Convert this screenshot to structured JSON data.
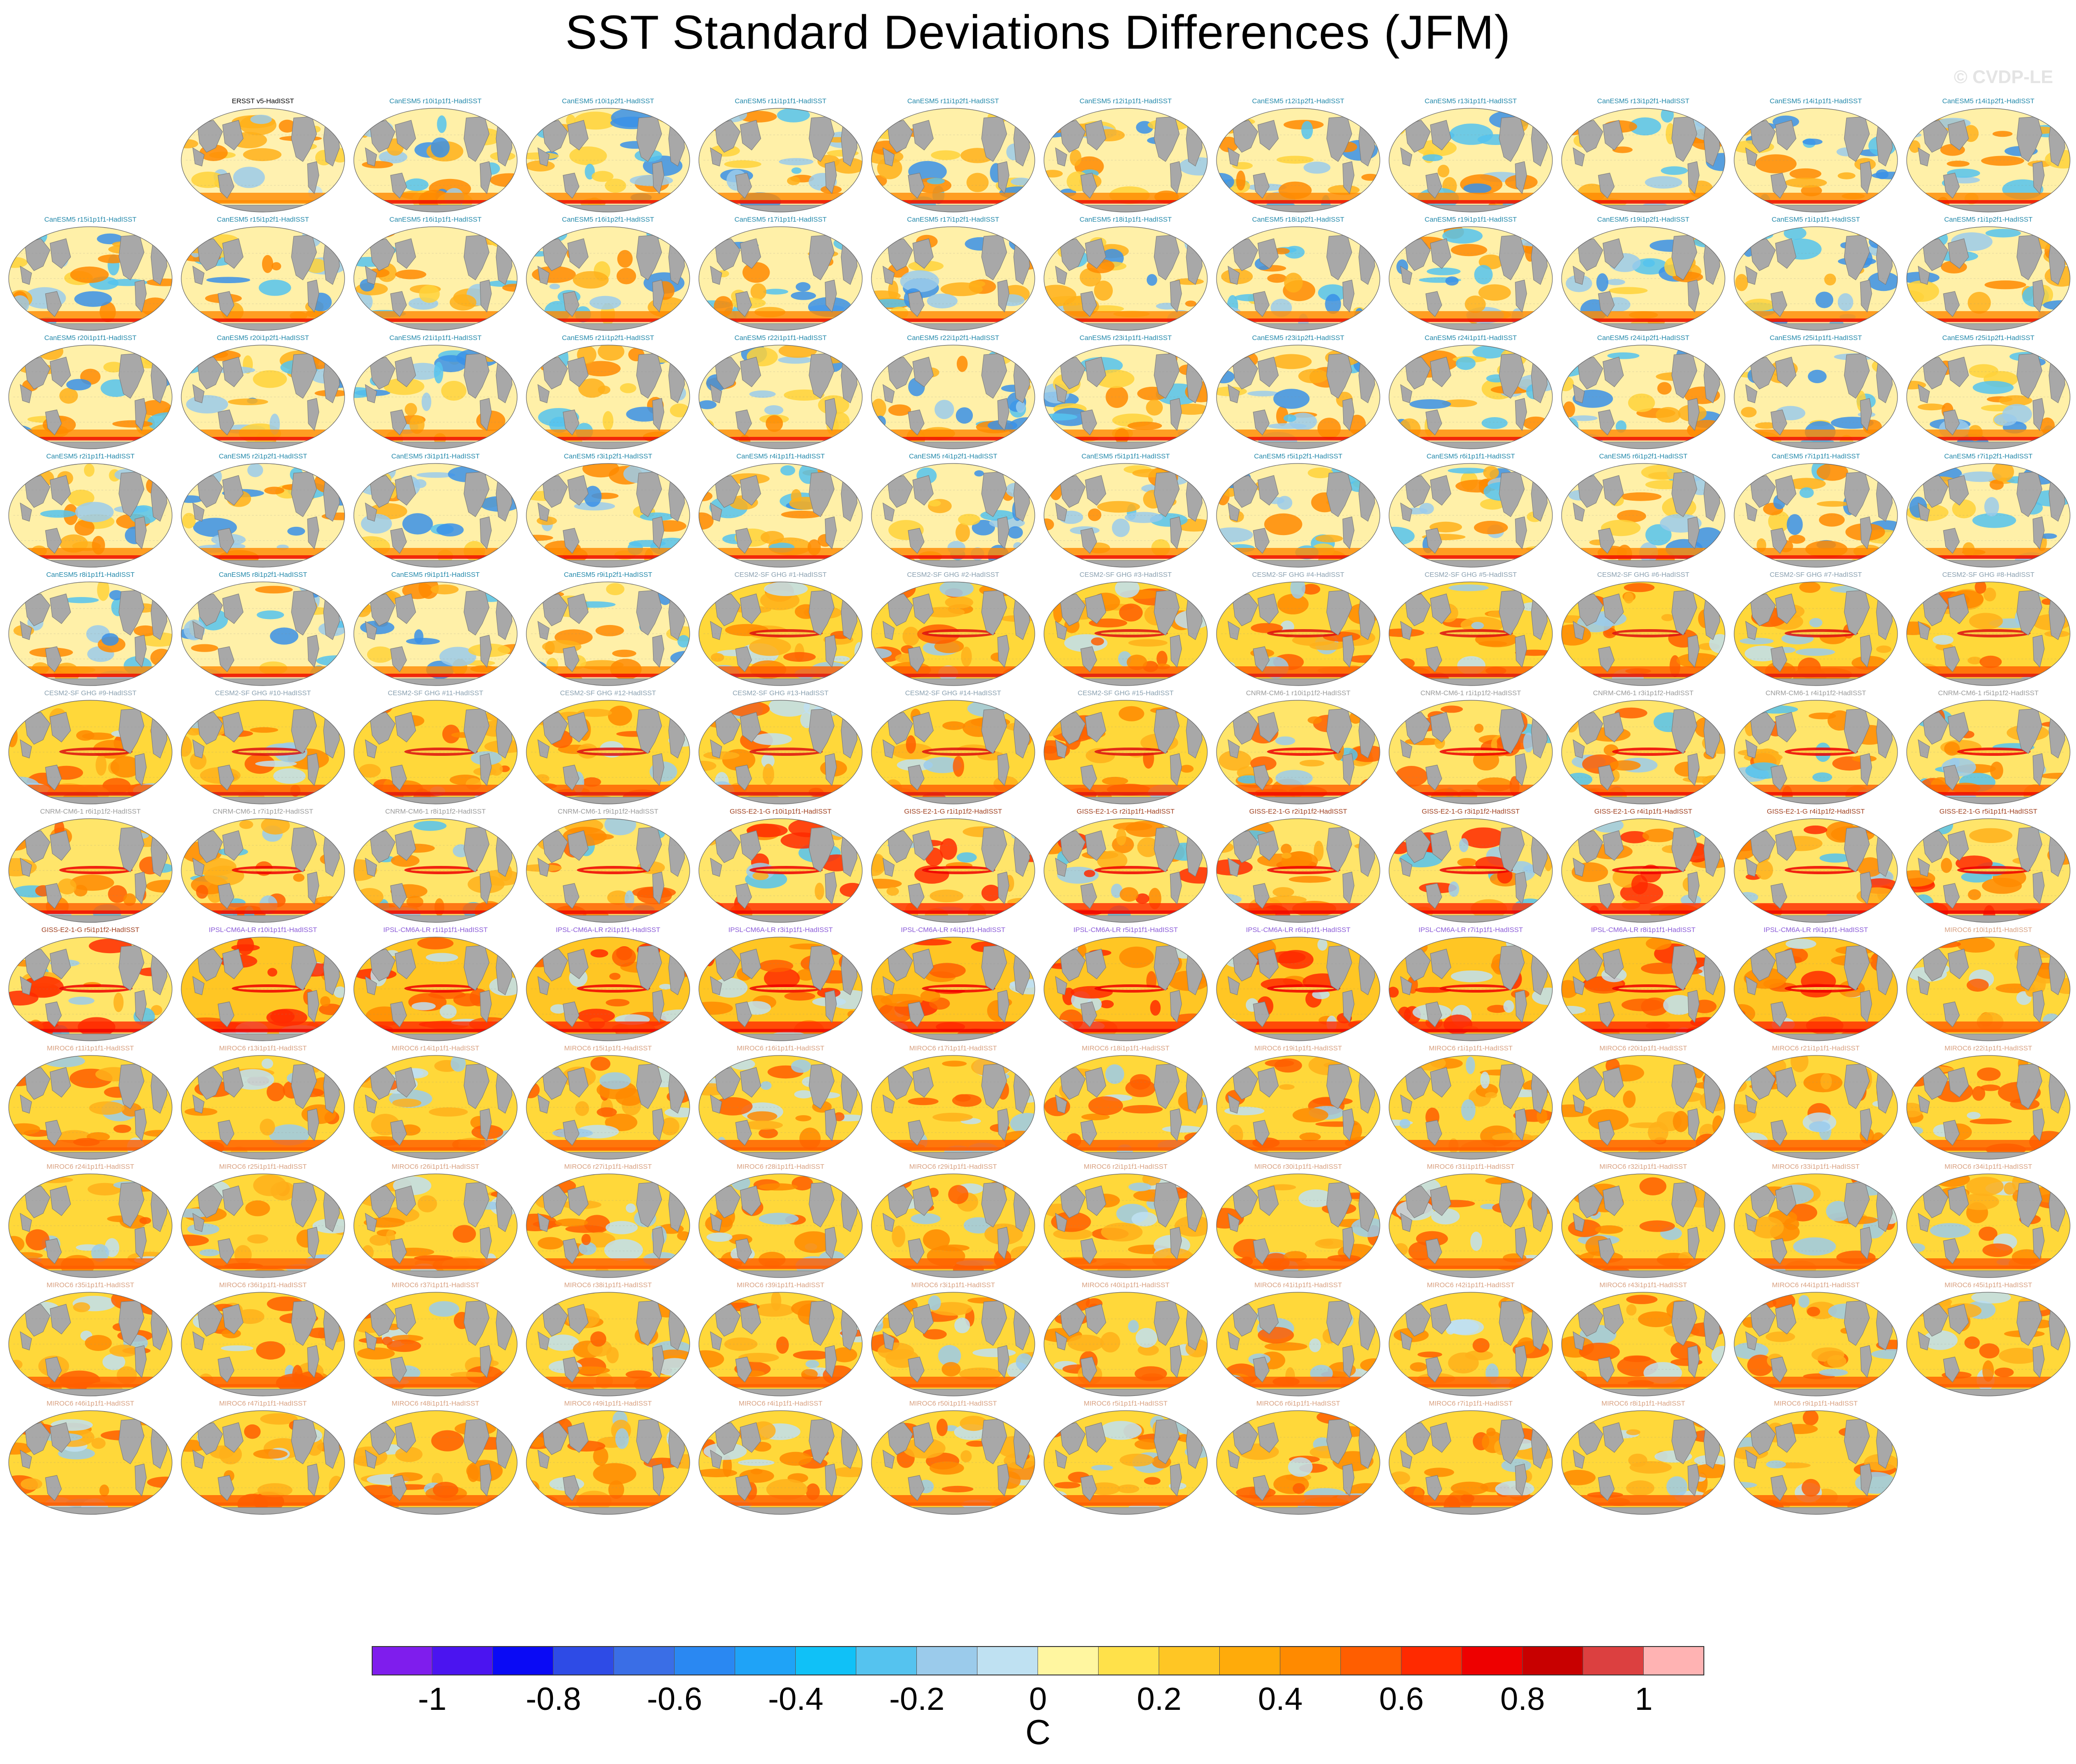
{
  "title": "SST Standard Deviations Differences (JFM)",
  "watermark": "© CVDP-LE",
  "colorbar": {
    "unit": "C",
    "ticks": [
      "-1",
      "-0.8",
      "-0.6",
      "-0.4",
      "-0.2",
      "0",
      "0.2",
      "0.4",
      "0.6",
      "0.8",
      "1"
    ],
    "levels": [
      -1.1,
      -1.0,
      -0.9,
      -0.8,
      -0.7,
      -0.6,
      -0.5,
      -0.4,
      -0.3,
      -0.2,
      -0.1,
      0,
      0.1,
      0.2,
      0.3,
      0.4,
      0.5,
      0.6,
      0.7,
      0.8,
      0.9,
      1.0,
      1.1
    ],
    "colors": [
      "#7f1ded",
      "#4b14f0",
      "#0a0af5",
      "#2e4be6",
      "#3a6ee6",
      "#2a88f2",
      "#1fa3f7",
      "#10c1f7",
      "#55c3ef",
      "#9bcbeb",
      "#bfe1f2",
      "#fff6a0",
      "#ffe14a",
      "#ffc624",
      "#ffab0a",
      "#ff8a00",
      "#ff5e00",
      "#ff2a00",
      "#ee0000",
      "#c80000",
      "#dc4040",
      "#ffb3b3"
    ]
  },
  "panels": [
    {
      "label": "ERSST v5-HadISST",
      "color": "#000000",
      "style": "obs"
    },
    {
      "label": "CanESM5 r10i1p1f1-HadISST",
      "color": "#2288aa",
      "style": "canesm"
    },
    {
      "label": "CanESM5 r10i1p2f1-HadISST",
      "color": "#2288aa",
      "style": "canesm"
    },
    {
      "label": "CanESM5 r11i1p1f1-HadISST",
      "color": "#2288aa",
      "style": "canesm"
    },
    {
      "label": "CanESM5 r11i1p2f1-HadISST",
      "color": "#2288aa",
      "style": "canesm"
    },
    {
      "label": "CanESM5 r12i1p1f1-HadISST",
      "color": "#2288aa",
      "style": "canesm"
    },
    {
      "label": "CanESM5 r12i1p2f1-HadISST",
      "color": "#2288aa",
      "style": "canesm"
    },
    {
      "label": "CanESM5 r13i1p1f1-HadISST",
      "color": "#2288aa",
      "style": "canesm"
    },
    {
      "label": "CanESM5 r13i1p2f1-HadISST",
      "color": "#2288aa",
      "style": "canesm"
    },
    {
      "label": "CanESM5 r14i1p1f1-HadISST",
      "color": "#2288aa",
      "style": "canesm"
    },
    {
      "label": "CanESM5 r14i1p2f1-HadISST",
      "color": "#2288aa",
      "style": "canesm"
    },
    {
      "label": "CanESM5 r15i1p1f1-HadISST",
      "color": "#2288aa",
      "style": "canesm"
    },
    {
      "label": "CanESM5 r15i1p2f1-HadISST",
      "color": "#2288aa",
      "style": "canesm"
    },
    {
      "label": "CanESM5 r16i1p1f1-HadISST",
      "color": "#2288aa",
      "style": "canesm"
    },
    {
      "label": "CanESM5 r16i1p2f1-HadISST",
      "color": "#2288aa",
      "style": "canesm"
    },
    {
      "label": "CanESM5 r17i1p1f1-HadISST",
      "color": "#2288aa",
      "style": "canesm"
    },
    {
      "label": "CanESM5 r17i1p2f1-HadISST",
      "color": "#2288aa",
      "style": "canesm"
    },
    {
      "label": "CanESM5 r18i1p1f1-HadISST",
      "color": "#2288aa",
      "style": "canesm"
    },
    {
      "label": "CanESM5 r18i1p2f1-HadISST",
      "color": "#2288aa",
      "style": "canesm"
    },
    {
      "label": "CanESM5 r19i1p1f1-HadISST",
      "color": "#2288aa",
      "style": "canesm"
    },
    {
      "label": "CanESM5 r19i1p2f1-HadISST",
      "color": "#2288aa",
      "style": "canesm"
    },
    {
      "label": "CanESM5 r1i1p1f1-HadISST",
      "color": "#2288aa",
      "style": "canesm"
    },
    {
      "label": "CanESM5 r1i1p2f1-HadISST",
      "color": "#2288aa",
      "style": "canesm"
    },
    {
      "label": "CanESM5 r20i1p1f1-HadISST",
      "color": "#2288aa",
      "style": "canesm"
    },
    {
      "label": "CanESM5 r20i1p2f1-HadISST",
      "color": "#2288aa",
      "style": "canesm"
    },
    {
      "label": "CanESM5 r21i1p1f1-HadISST",
      "color": "#2288aa",
      "style": "canesm"
    },
    {
      "label": "CanESM5 r21i1p2f1-HadISST",
      "color": "#2288aa",
      "style": "canesm"
    },
    {
      "label": "CanESM5 r22i1p1f1-HadISST",
      "color": "#2288aa",
      "style": "canesm"
    },
    {
      "label": "CanESM5 r22i1p2f1-HadISST",
      "color": "#2288aa",
      "style": "canesm"
    },
    {
      "label": "CanESM5 r23i1p1f1-HadISST",
      "color": "#2288aa",
      "style": "canesm"
    },
    {
      "label": "CanESM5 r23i1p2f1-HadISST",
      "color": "#2288aa",
      "style": "canesm"
    },
    {
      "label": "CanESM5 r24i1p1f1-HadISST",
      "color": "#2288aa",
      "style": "canesm"
    },
    {
      "label": "CanESM5 r24i1p2f1-HadISST",
      "color": "#2288aa",
      "style": "canesm"
    },
    {
      "label": "CanESM5 r25i1p1f1-HadISST",
      "color": "#2288aa",
      "style": "canesm"
    },
    {
      "label": "CanESM5 r25i1p2f1-HadISST",
      "color": "#2288aa",
      "style": "canesm"
    },
    {
      "label": "CanESM5 r2i1p1f1-HadISST",
      "color": "#2288aa",
      "style": "canesm"
    },
    {
      "label": "CanESM5 r2i1p2f1-HadISST",
      "color": "#2288aa",
      "style": "canesm"
    },
    {
      "label": "CanESM5 r3i1p1f1-HadISST",
      "color": "#2288aa",
      "style": "canesm"
    },
    {
      "label": "CanESM5 r3i1p2f1-HadISST",
      "color": "#2288aa",
      "style": "canesm"
    },
    {
      "label": "CanESM5 r4i1p1f1-HadISST",
      "color": "#2288aa",
      "style": "canesm"
    },
    {
      "label": "CanESM5 r4i1p2f1-HadISST",
      "color": "#2288aa",
      "style": "canesm"
    },
    {
      "label": "CanESM5 r5i1p1f1-HadISST",
      "color": "#2288aa",
      "style": "canesm"
    },
    {
      "label": "CanESM5 r5i1p2f1-HadISST",
      "color": "#2288aa",
      "style": "canesm"
    },
    {
      "label": "CanESM5 r6i1p1f1-HadISST",
      "color": "#2288aa",
      "style": "canesm"
    },
    {
      "label": "CanESM5 r6i1p2f1-HadISST",
      "color": "#2288aa",
      "style": "canesm"
    },
    {
      "label": "CanESM5 r7i1p1f1-HadISST",
      "color": "#2288aa",
      "style": "canesm"
    },
    {
      "label": "CanESM5 r7i1p2f1-HadISST",
      "color": "#2288aa",
      "style": "canesm"
    },
    {
      "label": "CanESM5 r8i1p1f1-HadISST",
      "color": "#2288aa",
      "style": "canesm"
    },
    {
      "label": "CanESM5 r8i1p2f1-HadISST",
      "color": "#2288aa",
      "style": "canesm"
    },
    {
      "label": "CanESM5 r9i1p1f1-HadISST",
      "color": "#2288aa",
      "style": "canesm"
    },
    {
      "label": "CanESM5 r9i1p2f1-HadISST",
      "color": "#2288aa",
      "style": "canesm"
    },
    {
      "label": "CESM2-SF GHG #1-HadISST",
      "color": "#8aa0b0",
      "style": "cesm"
    },
    {
      "label": "CESM2-SF GHG #2-HadISST",
      "color": "#8aa0b0",
      "style": "cesm"
    },
    {
      "label": "CESM2-SF GHG #3-HadISST",
      "color": "#8aa0b0",
      "style": "cesm"
    },
    {
      "label": "CESM2-SF GHG #4-HadISST",
      "color": "#8aa0b0",
      "style": "cesm"
    },
    {
      "label": "CESM2-SF GHG #5-HadISST",
      "color": "#8aa0b0",
      "style": "cesm"
    },
    {
      "label": "CESM2-SF GHG #6-HadISST",
      "color": "#8aa0b0",
      "style": "cesm"
    },
    {
      "label": "CESM2-SF GHG #7-HadISST",
      "color": "#8aa0b0",
      "style": "cesm"
    },
    {
      "label": "CESM2-SF GHG #8-HadISST",
      "color": "#8aa0b0",
      "style": "cesm"
    },
    {
      "label": "CESM2-SF GHG #9-HadISST",
      "color": "#8aa0b0",
      "style": "cesm"
    },
    {
      "label": "CESM2-SF GHG #10-HadISST",
      "color": "#8aa0b0",
      "style": "cesm"
    },
    {
      "label": "CESM2-SF GHG #11-HadISST",
      "color": "#8aa0b0",
      "style": "cesm"
    },
    {
      "label": "CESM2-SF GHG #12-HadISST",
      "color": "#8aa0b0",
      "style": "cesm"
    },
    {
      "label": "CESM2-SF GHG #13-HadISST",
      "color": "#8aa0b0",
      "style": "cesm"
    },
    {
      "label": "CESM2-SF GHG #14-HadISST",
      "color": "#8aa0b0",
      "style": "cesm"
    },
    {
      "label": "CESM2-SF GHG #15-HadISST",
      "color": "#8aa0b0",
      "style": "cesm"
    },
    {
      "label": "CNRM-CM6-1 r10i1p1f2-HadISST",
      "color": "#9a9a9a",
      "style": "cnrm"
    },
    {
      "label": "CNRM-CM6-1 r1i1p1f2-HadISST",
      "color": "#9a9a9a",
      "style": "cnrm"
    },
    {
      "label": "CNRM-CM6-1 r3i1p1f2-HadISST",
      "color": "#9a9a9a",
      "style": "cnrm"
    },
    {
      "label": "CNRM-CM6-1 r4i1p1f2-HadISST",
      "color": "#9a9a9a",
      "style": "cnrm"
    },
    {
      "label": "CNRM-CM6-1 r5i1p1f2-HadISST",
      "color": "#9a9a9a",
      "style": "cnrm"
    },
    {
      "label": "CNRM-CM6-1 r6i1p1f2-HadISST",
      "color": "#9a9a9a",
      "style": "cnrm"
    },
    {
      "label": "CNRM-CM6-1 r7i1p1f2-HadISST",
      "color": "#9a9a9a",
      "style": "cnrm"
    },
    {
      "label": "CNRM-CM6-1 r8i1p1f2-HadISST",
      "color": "#9a9a9a",
      "style": "cnrm"
    },
    {
      "label": "CNRM-CM6-1 r9i1p1f2-HadISST",
      "color": "#9a9a9a",
      "style": "cnrm"
    },
    {
      "label": "GISS-E2-1-G r10i1p1f1-HadISST",
      "color": "#a04020",
      "style": "giss"
    },
    {
      "label": "GISS-E2-1-G r1i1p1f2-HadISST",
      "color": "#a04020",
      "style": "giss"
    },
    {
      "label": "GISS-E2-1-G r2i1p1f1-HadISST",
      "color": "#a04020",
      "style": "giss"
    },
    {
      "label": "GISS-E2-1-G r2i1p1f2-HadISST",
      "color": "#a04020",
      "style": "giss"
    },
    {
      "label": "GISS-E2-1-G r3i1p1f2-HadISST",
      "color": "#a04020",
      "style": "giss"
    },
    {
      "label": "GISS-E2-1-G r4i1p1f1-HadISST",
      "color": "#a04020",
      "style": "giss"
    },
    {
      "label": "GISS-E2-1-G r4i1p1f2-HadISST",
      "color": "#a04020",
      "style": "giss"
    },
    {
      "label": "GISS-E2-1-G r5i1p1f1-HadISST",
      "color": "#a04020",
      "style": "giss"
    },
    {
      "label": "GISS-E2-1-G r5i1p1f2-HadISST",
      "color": "#a04020",
      "style": "giss"
    },
    {
      "label": "IPSL-CM6A-LR r10i1p1f1-HadISST",
      "color": "#8a5ad8",
      "style": "ipsl"
    },
    {
      "label": "IPSL-CM6A-LR r1i1p1f1-HadISST",
      "color": "#8a5ad8",
      "style": "ipsl"
    },
    {
      "label": "IPSL-CM6A-LR r2i1p1f1-HadISST",
      "color": "#8a5ad8",
      "style": "ipsl"
    },
    {
      "label": "IPSL-CM6A-LR r3i1p1f1-HadISST",
      "color": "#8a5ad8",
      "style": "ipsl"
    },
    {
      "label": "IPSL-CM6A-LR r4i1p1f1-HadISST",
      "color": "#8a5ad8",
      "style": "ipsl"
    },
    {
      "label": "IPSL-CM6A-LR r5i1p1f1-HadISST",
      "color": "#8a5ad8",
      "style": "ipsl"
    },
    {
      "label": "IPSL-CM6A-LR r6i1p1f1-HadISST",
      "color": "#8a5ad8",
      "style": "ipsl"
    },
    {
      "label": "IPSL-CM6A-LR r7i1p1f1-HadISST",
      "color": "#8a5ad8",
      "style": "ipsl"
    },
    {
      "label": "IPSL-CM6A-LR r8i1p1f1-HadISST",
      "color": "#8a5ad8",
      "style": "ipsl"
    },
    {
      "label": "IPSL-CM6A-LR r9i1p1f1-HadISST",
      "color": "#8a5ad8",
      "style": "ipsl"
    },
    {
      "label": "MIROC6 r10i1p1f1-HadISST",
      "color": "#d8a080",
      "style": "miroc"
    },
    {
      "label": "MIROC6 r11i1p1f1-HadISST",
      "color": "#d8a080",
      "style": "miroc"
    },
    {
      "label": "MIROC6 r13i1p1f1-HadISST",
      "color": "#d8a080",
      "style": "miroc"
    },
    {
      "label": "MIROC6 r14i1p1f1-HadISST",
      "color": "#d8a080",
      "style": "miroc"
    },
    {
      "label": "MIROC6 r15i1p1f1-HadISST",
      "color": "#d8a080",
      "style": "miroc"
    },
    {
      "label": "MIROC6 r16i1p1f1-HadISST",
      "color": "#d8a080",
      "style": "miroc"
    },
    {
      "label": "MIROC6 r17i1p1f1-HadISST",
      "color": "#d8a080",
      "style": "miroc"
    },
    {
      "label": "MIROC6 r18i1p1f1-HadISST",
      "color": "#d8a080",
      "style": "miroc"
    },
    {
      "label": "MIROC6 r19i1p1f1-HadISST",
      "color": "#d8a080",
      "style": "miroc"
    },
    {
      "label": "MIROC6 r1i1p1f1-HadISST",
      "color": "#d8a080",
      "style": "miroc"
    },
    {
      "label": "MIROC6 r20i1p1f1-HadISST",
      "color": "#d8a080",
      "style": "miroc"
    },
    {
      "label": "MIROC6 r21i1p1f1-HadISST",
      "color": "#d8a080",
      "style": "miroc"
    },
    {
      "label": "MIROC6 r22i1p1f1-HadISST",
      "color": "#d8a080",
      "style": "miroc"
    },
    {
      "label": "MIROC6 r24i1p1f1-HadISST",
      "color": "#d8a080",
      "style": "miroc"
    },
    {
      "label": "MIROC6 r25i1p1f1-HadISST",
      "color": "#d8a080",
      "style": "miroc"
    },
    {
      "label": "MIROC6 r26i1p1f1-HadISST",
      "color": "#d8a080",
      "style": "miroc"
    },
    {
      "label": "MIROC6 r27i1p1f1-HadISST",
      "color": "#d8a080",
      "style": "miroc"
    },
    {
      "label": "MIROC6 r28i1p1f1-HadISST",
      "color": "#d8a080",
      "style": "miroc"
    },
    {
      "label": "MIROC6 r29i1p1f1-HadISST",
      "color": "#d8a080",
      "style": "miroc"
    },
    {
      "label": "MIROC6 r2i1p1f1-HadISST",
      "color": "#d8a080",
      "style": "miroc"
    },
    {
      "label": "MIROC6 r30i1p1f1-HadISST",
      "color": "#d8a080",
      "style": "miroc"
    },
    {
      "label": "MIROC6 r31i1p1f1-HadISST",
      "color": "#d8a080",
      "style": "miroc"
    },
    {
      "label": "MIROC6 r32i1p1f1-HadISST",
      "color": "#d8a080",
      "style": "miroc"
    },
    {
      "label": "MIROC6 r33i1p1f1-HadISST",
      "color": "#d8a080",
      "style": "miroc"
    },
    {
      "label": "MIROC6 r34i1p1f1-HadISST",
      "color": "#d8a080",
      "style": "miroc"
    },
    {
      "label": "MIROC6 r35i1p1f1-HadISST",
      "color": "#d8a080",
      "style": "miroc"
    },
    {
      "label": "MIROC6 r36i1p1f1-HadISST",
      "color": "#d8a080",
      "style": "miroc"
    },
    {
      "label": "MIROC6 r37i1p1f1-HadISST",
      "color": "#d8a080",
      "style": "miroc"
    },
    {
      "label": "MIROC6 r38i1p1f1-HadISST",
      "color": "#d8a080",
      "style": "miroc"
    },
    {
      "label": "MIROC6 r39i1p1f1-HadISST",
      "color": "#d8a080",
      "style": "miroc"
    },
    {
      "label": "MIROC6 r3i1p1f1-HadISST",
      "color": "#d8a080",
      "style": "miroc"
    },
    {
      "label": "MIROC6 r40i1p1f1-HadISST",
      "color": "#d8a080",
      "style": "miroc"
    },
    {
      "label": "MIROC6 r41i1p1f1-HadISST",
      "color": "#d8a080",
      "style": "miroc"
    },
    {
      "label": "MIROC6 r42i1p1f1-HadISST",
      "color": "#d8a080",
      "style": "miroc"
    },
    {
      "label": "MIROC6 r43i1p1f1-HadISST",
      "color": "#d8a080",
      "style": "miroc"
    },
    {
      "label": "MIROC6 r44i1p1f1-HadISST",
      "color": "#d8a080",
      "style": "miroc"
    },
    {
      "label": "MIROC6 r45i1p1f1-HadISST",
      "color": "#d8a080",
      "style": "miroc"
    },
    {
      "label": "MIROC6 r46i1p1f1-HadISST",
      "color": "#d8a080",
      "style": "miroc"
    },
    {
      "label": "MIROC6 r47i1p1f1-HadISST",
      "color": "#d8a080",
      "style": "miroc"
    },
    {
      "label": "MIROC6 r48i1p1f1-HadISST",
      "color": "#d8a080",
      "style": "miroc"
    },
    {
      "label": "MIROC6 r49i1p1f1-HadISST",
      "color": "#d8a080",
      "style": "miroc"
    },
    {
      "label": "MIROC6 r4i1p1f1-HadISST",
      "color": "#d8a080",
      "style": "miroc"
    },
    {
      "label": "MIROC6 r50i1p1f1-HadISST",
      "color": "#d8a080",
      "style": "miroc"
    },
    {
      "label": "MIROC6 r5i1p1f1-HadISST",
      "color": "#d8a080",
      "style": "miroc"
    },
    {
      "label": "MIROC6 r6i1p1f1-HadISST",
      "color": "#d8a080",
      "style": "miroc"
    },
    {
      "label": "MIROC6 r7i1p1f1-HadISST",
      "color": "#d8a080",
      "style": "miroc"
    },
    {
      "label": "MIROC6 r8i1p1f1-HadISST",
      "color": "#d8a080",
      "style": "miroc"
    },
    {
      "label": "MIROC6 r9i1p1f1-HadISST",
      "color": "#d8a080",
      "style": "miroc"
    }
  ]
}
